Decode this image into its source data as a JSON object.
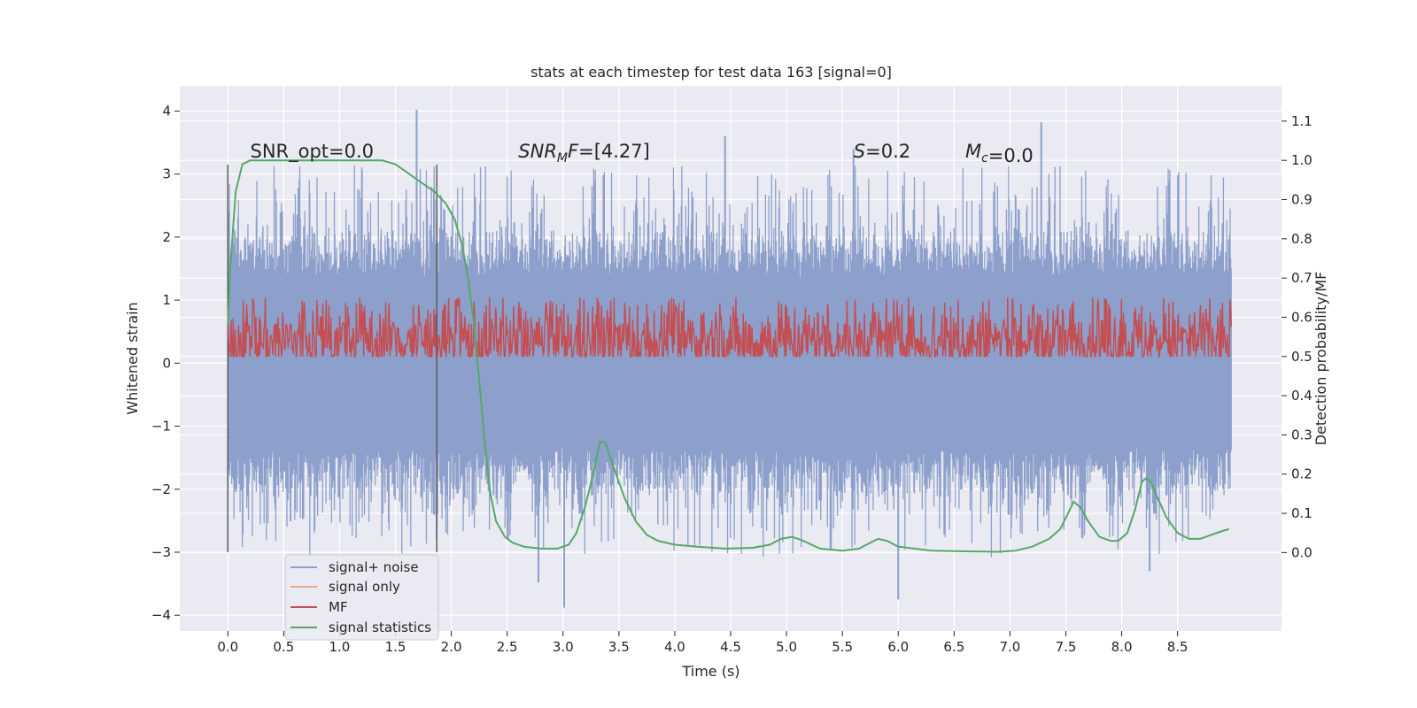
{
  "chart_data": {
    "type": "line",
    "title": "stats at each timestep for test data 163 [signal=0]",
    "xlabel": "Time (s)",
    "ylabel": "Whitened strain",
    "ylabel_right": "Detection probability/MF",
    "xlim": [
      -0.43,
      9.43
    ],
    "ylim": [
      -4.25,
      4.4
    ],
    "ylim_right": [
      -0.2,
      1.19
    ],
    "x_ticks": [
      0.0,
      0.5,
      1.0,
      1.5,
      2.0,
      2.5,
      3.0,
      3.5,
      4.0,
      4.5,
      5.0,
      5.5,
      6.0,
      6.5,
      7.0,
      7.5,
      8.0,
      8.5
    ],
    "x_tick_labels": [
      "0.0",
      "0.5",
      "1.0",
      "1.5",
      "2.0",
      "2.5",
      "3.0",
      "3.5",
      "4.0",
      "4.5",
      "5.0",
      "5.5",
      "6.0",
      "6.5",
      "7.0",
      "7.5",
      "8.0",
      "8.5"
    ],
    "y_ticks": [
      4,
      3,
      2,
      1,
      0,
      -1,
      -2,
      -3,
      -4
    ],
    "y_tick_labels": [
      "4",
      "3",
      "2",
      "1",
      "0",
      "−1",
      "−2",
      "−3",
      "−4"
    ],
    "y_right_ticks": [
      1.1,
      1.0,
      0.9,
      0.8,
      0.7,
      0.6,
      0.5,
      0.4,
      0.3,
      0.2,
      0.1,
      0.0
    ],
    "y_right_tick_labels": [
      "1.1",
      "1.0",
      "0.9",
      "0.8",
      "0.7",
      "0.6",
      "0.5",
      "0.4",
      "0.3",
      "0.2",
      "0.1",
      "0.0"
    ],
    "noise": {
      "name": "signal+ noise",
      "color": "#8da0cb",
      "t_start": 0.0,
      "t_end": 8.98,
      "samples": 1800,
      "core_low": -1.35,
      "core_high": 1.35,
      "envelope_low": -2.3,
      "envelope_high": 2.35,
      "peaks": [
        {
          "t": 1.69,
          "v": 4.02
        },
        {
          "t": 7.28,
          "v": 3.82
        },
        {
          "t": 4.45,
          "v": 3.6
        },
        {
          "t": 5.6,
          "v": 3.4
        },
        {
          "t": 3.01,
          "v": -3.88
        },
        {
          "t": 6.0,
          "v": -3.75
        },
        {
          "t": 2.78,
          "v": -3.48
        },
        {
          "t": 8.25,
          "v": -3.3
        }
      ]
    },
    "signal_only": {
      "name": "signal only",
      "color": "#e8a88a",
      "values": []
    },
    "mf": {
      "name": "MF",
      "color": "#c44e52",
      "axis": "right",
      "t_start": 0.0,
      "t_end": 8.98,
      "samples": 1500,
      "base": 0.54,
      "amp": 0.05,
      "min": 0.5,
      "max": 0.65
    },
    "signal_statistics": {
      "name": "signal statistics",
      "color": "#55a868",
      "axis": "right",
      "t": [
        0.0,
        0.02,
        0.07,
        0.13,
        0.2,
        0.3,
        0.5,
        0.8,
        1.0,
        1.2,
        1.38,
        1.5,
        1.65,
        1.75,
        1.85,
        1.95,
        2.03,
        2.1,
        2.15,
        2.2,
        2.25,
        2.3,
        2.35,
        2.4,
        2.48,
        2.55,
        2.65,
        2.8,
        2.95,
        3.05,
        3.12,
        3.2,
        3.27,
        3.33,
        3.38,
        3.45,
        3.55,
        3.65,
        3.75,
        3.85,
        4.0,
        4.2,
        4.45,
        4.7,
        4.85,
        4.95,
        5.05,
        5.15,
        5.3,
        5.5,
        5.65,
        5.75,
        5.82,
        5.9,
        6.0,
        6.3,
        6.6,
        6.9,
        7.05,
        7.2,
        7.35,
        7.45,
        7.52,
        7.57,
        7.63,
        7.7,
        7.8,
        7.9,
        7.97,
        8.05,
        8.12,
        8.18,
        8.22,
        8.26,
        8.32,
        8.4,
        8.5,
        8.6,
        8.7,
        8.8,
        8.9,
        8.96
      ],
      "values": [
        0.58,
        0.72,
        0.92,
        0.99,
        1.0,
        1.0,
        1.0,
        1.0,
        1.0,
        1.0,
        1.0,
        0.99,
        0.96,
        0.94,
        0.92,
        0.89,
        0.85,
        0.78,
        0.7,
        0.59,
        0.44,
        0.28,
        0.15,
        0.08,
        0.04,
        0.025,
        0.015,
        0.01,
        0.01,
        0.02,
        0.05,
        0.12,
        0.2,
        0.283,
        0.28,
        0.22,
        0.14,
        0.08,
        0.045,
        0.03,
        0.02,
        0.015,
        0.01,
        0.012,
        0.02,
        0.035,
        0.04,
        0.03,
        0.01,
        0.005,
        0.01,
        0.025,
        0.035,
        0.03,
        0.015,
        0.005,
        0.003,
        0.002,
        0.005,
        0.015,
        0.035,
        0.06,
        0.1,
        0.13,
        0.115,
        0.08,
        0.04,
        0.03,
        0.03,
        0.05,
        0.11,
        0.18,
        0.19,
        0.18,
        0.14,
        0.09,
        0.05,
        0.035,
        0.035,
        0.045,
        0.055,
        0.06
      ]
    },
    "vertical_lines": [
      0.0,
      1.87
    ],
    "vertical_line_range": [
      -3.0,
      3.15
    ],
    "annotations": [
      {
        "text": "SNR_opt=0.0",
        "x": 0.2,
        "y": 3.26,
        "italic_part": ""
      },
      {
        "base": "SNR",
        "sub": "M",
        "tail": "F",
        "value": "=[4.27]",
        "x": 2.6,
        "y": 3.26
      },
      {
        "base": "S",
        "sub": "",
        "tail": "",
        "value": "=0.2",
        "x": 5.6,
        "y": 3.26
      },
      {
        "base": "M",
        "sub": "c",
        "tail": "",
        "value": "=0.0",
        "x": 6.6,
        "y": 3.26
      }
    ],
    "legend": {
      "placement": "lower-left",
      "entries": [
        "signal+ noise",
        "signal only",
        "MF",
        "signal statistics"
      ]
    },
    "grid": true,
    "background": "#eaeaf2"
  }
}
